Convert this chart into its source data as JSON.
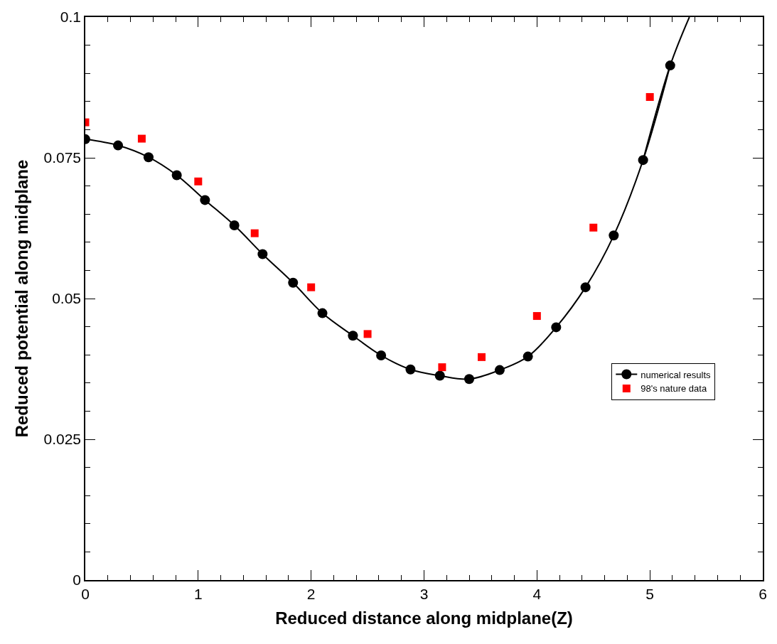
{
  "chart_data": {
    "type": "line",
    "xlabel": "Reduced distance along midplane(Z)",
    "ylabel": "Reduced potential along midplane",
    "xlim": [
      0,
      6
    ],
    "xticks": [
      0,
      1,
      2,
      3,
      4,
      5,
      6
    ],
    "ylim": [
      0,
      0.1
    ],
    "yticks": [
      0,
      0.025,
      0.05,
      0.075,
      0.1
    ],
    "legend": "bottom right",
    "series": [
      {
        "name": "numerical results",
        "color": "#000000",
        "marker": "circle",
        "x": [
          0,
          0.29,
          0.56,
          0.81,
          1.06,
          1.32,
          1.57,
          1.84,
          2.1,
          2.37,
          2.62,
          2.88,
          3.14,
          3.4,
          3.67,
          3.92,
          4.17,
          4.43,
          4.68,
          4.94,
          5.18
        ],
        "values": [
          0.0783,
          0.0772,
          0.0751,
          0.0719,
          0.0675,
          0.063,
          0.0579,
          0.0528,
          0.0474,
          0.0434,
          0.0399,
          0.0374,
          0.0363,
          0.0357,
          0.0373,
          0.0397,
          0.0449,
          0.052,
          0.0612,
          0.0746,
          0.0914
        ]
      },
      {
        "color": "#000000",
        "x": [
          4.94,
          5.18,
          5.35
        ],
        "values": [
          0.0746,
          0.0914,
          0.1
        ]
      },
      {
        "type": "scatter",
        "name": "98's nature data",
        "color": "#ff0000",
        "marker": "square",
        "x": [
          0,
          0.5,
          1,
          1.5,
          2,
          2.5,
          3.16,
          3.51,
          4,
          4.5,
          5
        ],
        "values": [
          0.0813,
          0.0784,
          0.0708,
          0.0616,
          0.052,
          0.0437,
          0.0378,
          0.0396,
          0.0469,
          0.0626,
          0.0858
        ]
      }
    ]
  }
}
